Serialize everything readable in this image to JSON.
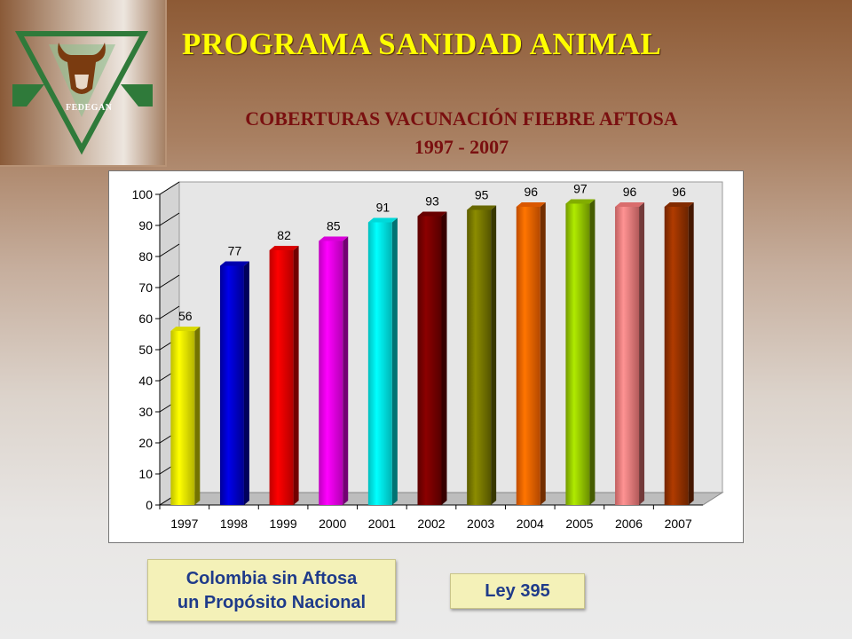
{
  "header": {
    "logo_text": "FEDEGAN",
    "title": "PROGRAMA SANIDAD ANIMAL",
    "subtitle_line1": "COBERTURAS VACUNACIÓN FIEBRE AFTOSA",
    "subtitle_line2": "1997 - 2007"
  },
  "chart_data": {
    "type": "bar",
    "title": "",
    "xlabel": "",
    "ylabel": "",
    "ylim": [
      0,
      100
    ],
    "yticks": [
      0,
      10,
      20,
      30,
      40,
      50,
      60,
      70,
      80,
      90,
      100
    ],
    "categories": [
      "1997",
      "1998",
      "1999",
      "2000",
      "2001",
      "2002",
      "2003",
      "2004",
      "2005",
      "2006",
      "2007"
    ],
    "values": [
      56,
      77,
      82,
      85,
      91,
      93,
      95,
      96,
      97,
      96,
      96
    ],
    "data_labels": [
      "56",
      "77",
      "82",
      "85",
      "91",
      "93",
      "95",
      "96",
      "97",
      "96",
      "96"
    ],
    "bar_colors": [
      "#ffff00",
      "#0000cc",
      "#ff0000",
      "#ff00ff",
      "#00ffff",
      "#7a0000",
      "#7a7a00",
      "#ff6600",
      "#99cc00",
      "#ff8080",
      "#993300"
    ],
    "grid": false,
    "legend": "none",
    "style": "3d"
  },
  "footer": {
    "tag1_line1": "Colombia sin Aftosa",
    "tag1_line2": "un Propósito Nacional",
    "tag2": "Ley 395"
  }
}
